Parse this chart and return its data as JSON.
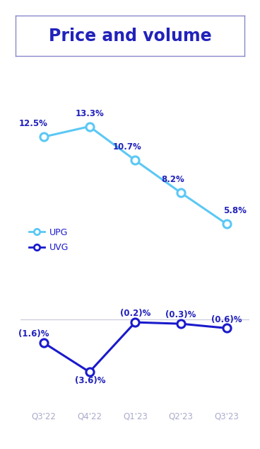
{
  "title": "Price and volume",
  "title_color": "#2222bb",
  "title_fontsize": 17,
  "categories": [
    "Q3'22",
    "Q4'22",
    "Q1'23",
    "Q2'23",
    "Q3'23"
  ],
  "upg_values": [
    12.5,
    13.3,
    10.7,
    8.2,
    5.8
  ],
  "uvg_values": [
    -1.6,
    -3.6,
    -0.2,
    -0.3,
    -0.6
  ],
  "upg_labels": [
    "12.5%",
    "13.3%",
    "10.7%",
    "8.2%",
    "5.8%"
  ],
  "uvg_labels": [
    "(1.6)%",
    "(3.6)%",
    "(0.2)%",
    "(0.3)%",
    "(0.6)%"
  ],
  "upg_color": "#5bc8f5",
  "uvg_color": "#1a1acc",
  "label_color": "#2222bb",
  "axis_label_color": "#aaaacc",
  "background_color": "#ffffff",
  "border_color": "#8888cc",
  "legend_upg": "UPG",
  "legend_uvg": "UVG"
}
